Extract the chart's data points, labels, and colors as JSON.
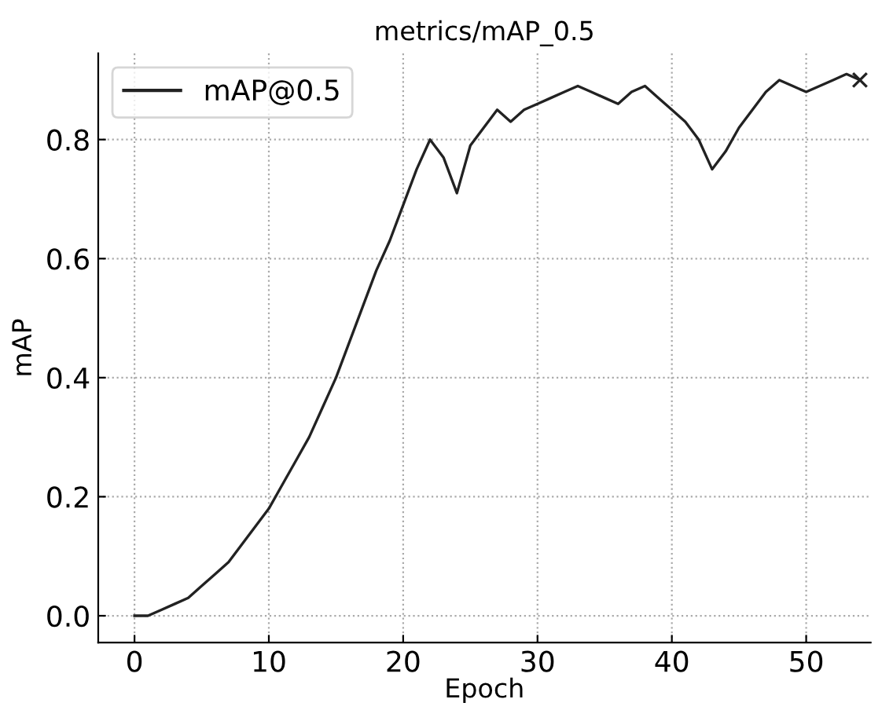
{
  "chart_data": {
    "type": "line",
    "title": "metrics/mAP_0.5",
    "xlabel": "Epoch",
    "ylabel": "mAP",
    "xlim": [
      -2.7,
      54.8
    ],
    "ylim": [
      -0.045,
      0.945
    ],
    "xticks": [
      0,
      10,
      20,
      30,
      40,
      50
    ],
    "yticks": [
      {
        "value": 0,
        "label": "0.0"
      },
      0.2,
      0.4,
      0.6,
      0.8
    ],
    "grid": true,
    "legend": "top left",
    "series": [
      {
        "name": "mAP@0.5",
        "color": "#222222",
        "marker": "none",
        "line_style": "solid",
        "x": [
          0,
          1,
          2,
          3,
          4,
          5,
          6,
          7,
          8,
          9,
          10,
          11,
          12,
          13,
          14,
          15,
          16,
          17,
          18,
          19,
          20,
          21,
          22,
          23,
          24,
          25,
          26,
          27,
          28,
          29,
          30,
          31,
          32,
          33,
          34,
          35,
          36,
          37,
          38,
          39,
          40,
          41,
          42,
          43,
          44,
          45,
          46,
          47,
          48,
          49,
          50,
          51,
          52,
          53,
          54
        ],
        "values": [
          0.0,
          0.0,
          0.01,
          0.02,
          0.03,
          0.05,
          0.07,
          0.09,
          0.12,
          0.15,
          0.18,
          0.22,
          0.26,
          0.3,
          0.35,
          0.4,
          0.46,
          0.52,
          0.58,
          0.63,
          0.69,
          0.75,
          0.8,
          0.77,
          0.71,
          0.79,
          0.82,
          0.85,
          0.83,
          0.85,
          0.86,
          0.87,
          0.88,
          0.89,
          0.88,
          0.87,
          0.86,
          0.88,
          0.89,
          0.87,
          0.85,
          0.83,
          0.8,
          0.75,
          0.78,
          0.82,
          0.85,
          0.88,
          0.9,
          0.89,
          0.88,
          0.89,
          0.9,
          0.91,
          0.9
        ]
      },
      {
        "color": "#222222",
        "type": "scatter",
        "marker": "cross",
        "x": [
          54
        ],
        "values": [
          0.9
        ]
      }
    ]
  }
}
